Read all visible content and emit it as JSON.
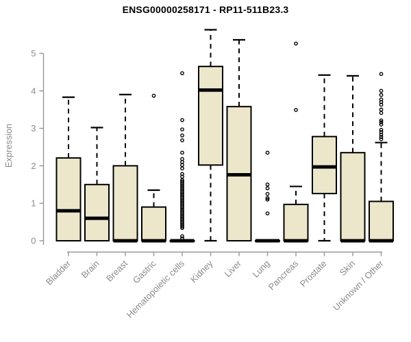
{
  "chart_data": {
    "type": "boxplot",
    "title": "ENSG00000258171 - RP11-511B23.3",
    "ylabel": "Expression",
    "xlabel": "",
    "ylim": [
      0,
      5.8
    ],
    "yticks": [
      0,
      1,
      2,
      3,
      4,
      5
    ],
    "grid": false,
    "legend": "none",
    "categories": [
      "Bladder",
      "Brain",
      "Breast",
      "Gastric",
      "Hematopoietic cells",
      "Kidney",
      "Liver",
      "Lung",
      "Pancreas",
      "Prostate",
      "Skin",
      "Unknown / Other"
    ],
    "series": [
      {
        "category": "Bladder",
        "whisker_low": 0,
        "q1": 0,
        "median": 0.8,
        "q3": 2.21,
        "whisker_high": 3.83,
        "outliers": []
      },
      {
        "category": "Brain",
        "whisker_low": 0,
        "q1": 0,
        "median": 0.6,
        "q3": 1.5,
        "whisker_high": 3.02,
        "outliers": []
      },
      {
        "category": "Breast",
        "whisker_low": 0,
        "q1": 0,
        "median": 0,
        "q3": 2.0,
        "whisker_high": 3.9,
        "outliers": []
      },
      {
        "category": "Gastric",
        "whisker_low": 0,
        "q1": 0,
        "median": 0,
        "q3": 0.9,
        "whisker_high": 1.35,
        "outliers": [
          3.87
        ]
      },
      {
        "category": "Hematopoietic cells",
        "whisker_low": 0,
        "q1": 0,
        "median": 0,
        "q3": 0,
        "whisker_high": 0,
        "outliers": [
          4.47,
          3.22,
          2.97,
          2.81,
          2.68,
          2.35,
          2.18,
          2.1,
          2.02,
          1.93,
          1.78,
          1.71,
          1.62,
          1.58,
          1.54,
          1.5,
          1.46,
          1.42,
          1.38,
          1.34,
          1.3,
          1.26,
          1.22,
          1.18,
          1.14,
          1.1,
          1.06,
          1.02,
          0.98,
          0.94,
          0.9,
          0.86,
          0.82,
          0.78,
          0.74,
          0.7,
          0.66,
          0.62,
          0.58,
          0.54,
          0.5,
          0.46,
          0.42,
          0.38,
          0.34,
          0.12,
          0.06
        ]
      },
      {
        "category": "Kidney",
        "whisker_low": 0,
        "q1": 2.02,
        "median": 4.02,
        "q3": 4.65,
        "whisker_high": 5.63,
        "outliers": []
      },
      {
        "category": "Liver",
        "whisker_low": 0,
        "q1": 0,
        "median": 1.76,
        "q3": 3.58,
        "whisker_high": 5.36,
        "outliers": []
      },
      {
        "category": "Lung",
        "whisker_low": 0,
        "q1": 0,
        "median": 0,
        "q3": 0,
        "whisker_high": 0,
        "outliers": [
          2.35,
          1.5,
          1.4,
          1.25,
          1.14,
          1.1,
          0.73
        ]
      },
      {
        "category": "Pancreas",
        "whisker_low": 0,
        "q1": 0,
        "median": 0,
        "q3": 0.97,
        "whisker_high": 1.45,
        "outliers": [
          5.26,
          3.49
        ]
      },
      {
        "category": "Prostate",
        "whisker_low": 0,
        "q1": 1.26,
        "median": 1.97,
        "q3": 2.78,
        "whisker_high": 4.42,
        "outliers": []
      },
      {
        "category": "Skin",
        "whisker_low": 0,
        "q1": 0,
        "median": 0,
        "q3": 2.35,
        "whisker_high": 4.4,
        "outliers": []
      },
      {
        "category": "Unknown / Other",
        "whisker_low": 0,
        "q1": 0,
        "median": 0,
        "q3": 1.05,
        "whisker_high": 2.62,
        "outliers": [
          4.45,
          4.0,
          3.89,
          3.77,
          3.7,
          3.63,
          3.5,
          3.41,
          3.21,
          3.16,
          3.1,
          2.96,
          2.9,
          2.83,
          2.77,
          2.71
        ]
      }
    ],
    "colors": {
      "box_fill": "#ECE7CB",
      "box_border": "#000000",
      "median": "#000000",
      "whisker": "#000000",
      "outlier": "#000000",
      "axis": "#969696",
      "tick_label": "#8a8a8a",
      "title": "#000000"
    }
  }
}
